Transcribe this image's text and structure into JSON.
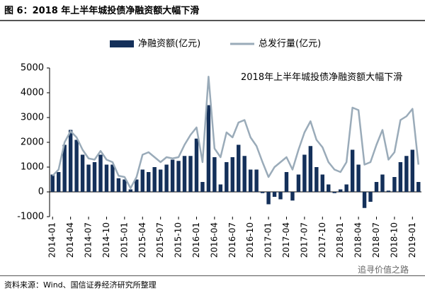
{
  "chart_data": {
    "type": "bar-line",
    "title": "图 6：2018 年上半年城投债净融资额大幅下滑",
    "annotation": "2018年上半年城投债净融资额大幅下滑",
    "source": "资料来源：Wind、国信证券经济研究所整理",
    "watermark": "追寻价值之路",
    "categories": [
      "2014-01",
      null,
      null,
      "2014-04",
      null,
      null,
      "2014-07",
      null,
      null,
      "2014-10",
      null,
      null,
      "2015-01",
      null,
      null,
      "2015-04",
      null,
      null,
      "2015-07",
      null,
      null,
      "2015-10",
      null,
      null,
      "2016-01",
      null,
      null,
      "2016-04",
      null,
      null,
      "2016-07",
      null,
      null,
      "2016-10",
      null,
      null,
      "2017-01",
      null,
      null,
      "2017-04",
      null,
      null,
      "2017-07",
      null,
      null,
      "2017-10",
      null,
      null,
      "2018-01",
      null,
      null,
      "2018-04",
      null,
      null,
      "2018-07",
      null,
      null,
      "2018-10",
      null,
      null,
      "2019-01",
      null
    ],
    "series": [
      {
        "name": "净融资额(亿元)",
        "type": "bar",
        "color": "#14305a",
        "values": [
          700,
          800,
          1900,
          2500,
          2100,
          1500,
          1100,
          1200,
          1500,
          1100,
          1100,
          550,
          500,
          100,
          500,
          900,
          800,
          1000,
          900,
          1100,
          1300,
          1250,
          1450,
          1450,
          2150,
          400,
          3500,
          1400,
          300,
          1200,
          1400,
          1900,
          1450,
          900,
          900,
          -50,
          -500,
          -200,
          -300,
          800,
          -350,
          700,
          1500,
          1850,
          1000,
          700,
          300,
          -50,
          100,
          300,
          1700,
          1100,
          -650,
          -400,
          400,
          700,
          50,
          600,
          1200,
          1450,
          1700,
          400
        ]
      },
      {
        "name": "总发行量(亿元)",
        "type": "line",
        "color": "#9aabb9",
        "values": [
          650,
          900,
          2000,
          2450,
          2200,
          1700,
          1350,
          1300,
          1650,
          1300,
          1200,
          650,
          600,
          150,
          600,
          1500,
          1600,
          1400,
          1200,
          1400,
          1350,
          1400,
          1900,
          2300,
          2600,
          1200,
          4650,
          1750,
          1400,
          2400,
          2200,
          2800,
          2900,
          2200,
          1850,
          1200,
          600,
          1000,
          1200,
          1400,
          900,
          1700,
          2400,
          2850,
          2100,
          1800,
          1200,
          900,
          800,
          1200,
          3400,
          3300,
          1100,
          1200,
          1900,
          2500,
          1300,
          1600,
          2900,
          3050,
          3350,
          1100
        ]
      }
    ],
    "ylim": [
      -1000,
      5000
    ],
    "yticks": [
      -1000,
      0,
      1000,
      2000,
      3000,
      4000,
      5000
    ],
    "grid": false
  }
}
